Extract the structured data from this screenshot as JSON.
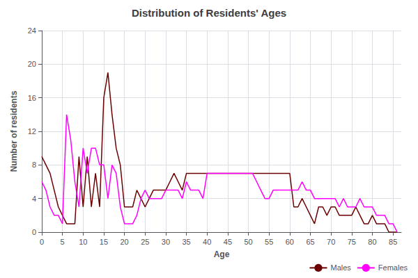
{
  "chart_data": {
    "type": "line",
    "title": "Distribution of Residents' Ages",
    "xlabel": "Age",
    "ylabel": "Number of residents",
    "x": [
      0,
      1,
      2,
      3,
      4,
      5,
      6,
      7,
      8,
      9,
      10,
      11,
      12,
      13,
      14,
      15,
      16,
      17,
      18,
      19,
      20,
      21,
      22,
      23,
      24,
      25,
      26,
      27,
      28,
      29,
      30,
      31,
      32,
      33,
      34,
      35,
      36,
      37,
      38,
      39,
      40,
      41,
      42,
      43,
      44,
      45,
      46,
      47,
      48,
      49,
      50,
      51,
      52,
      53,
      54,
      55,
      56,
      57,
      58,
      59,
      60,
      61,
      62,
      63,
      64,
      65,
      66,
      67,
      68,
      69,
      70,
      71,
      72,
      73,
      74,
      75,
      76,
      77,
      78,
      79,
      80,
      81,
      82,
      83,
      84,
      85,
      86
    ],
    "series": [
      {
        "name": "Males",
        "color": "#6B0000",
        "values": [
          9,
          8,
          7,
          5,
          3,
          2,
          1,
          1,
          1,
          9,
          3,
          9,
          3,
          7,
          3,
          16,
          19,
          14,
          10,
          8,
          3,
          3,
          3,
          5,
          4,
          3,
          4,
          5,
          5,
          5,
          5,
          6,
          7,
          6,
          5,
          7,
          7,
          7,
          7,
          7,
          7,
          7,
          7,
          7,
          7,
          7,
          7,
          7,
          7,
          7,
          7,
          7,
          7,
          7,
          7,
          7,
          7,
          7,
          7,
          7,
          7,
          3,
          3,
          4,
          3,
          2,
          1,
          3,
          3,
          2,
          3,
          3,
          2,
          2,
          2,
          2,
          3,
          2,
          1,
          1,
          2,
          1,
          1,
          1,
          0,
          0,
          0
        ]
      },
      {
        "name": "Females",
        "color": "#FF00FF",
        "values": [
          6,
          5,
          3,
          2,
          2,
          1,
          14,
          11,
          6,
          3,
          10,
          7,
          10,
          10,
          8,
          8,
          4,
          8,
          7,
          3,
          1,
          1,
          1,
          2,
          4,
          5,
          4,
          4,
          4,
          4,
          5,
          5,
          5,
          5,
          4,
          6,
          5,
          5,
          5,
          4,
          7,
          7,
          7,
          7,
          7,
          7,
          7,
          7,
          7,
          7,
          7,
          7,
          6,
          5,
          4,
          4,
          5,
          5,
          5,
          5,
          5,
          5,
          5,
          6,
          5,
          5,
          4,
          4,
          4,
          4,
          4,
          4,
          3,
          4,
          3,
          3,
          3,
          4,
          3,
          3,
          3,
          2,
          2,
          2,
          1,
          1,
          0
        ]
      }
    ],
    "xlim": [
      0,
      87
    ],
    "ylim": [
      0,
      24
    ],
    "xticks": [
      0,
      5,
      10,
      15,
      20,
      25,
      30,
      35,
      40,
      45,
      50,
      55,
      60,
      65,
      70,
      75,
      80,
      85
    ],
    "yticks": [
      0,
      4,
      8,
      12,
      16,
      20,
      24
    ],
    "grid": true,
    "legend": "lower right"
  }
}
